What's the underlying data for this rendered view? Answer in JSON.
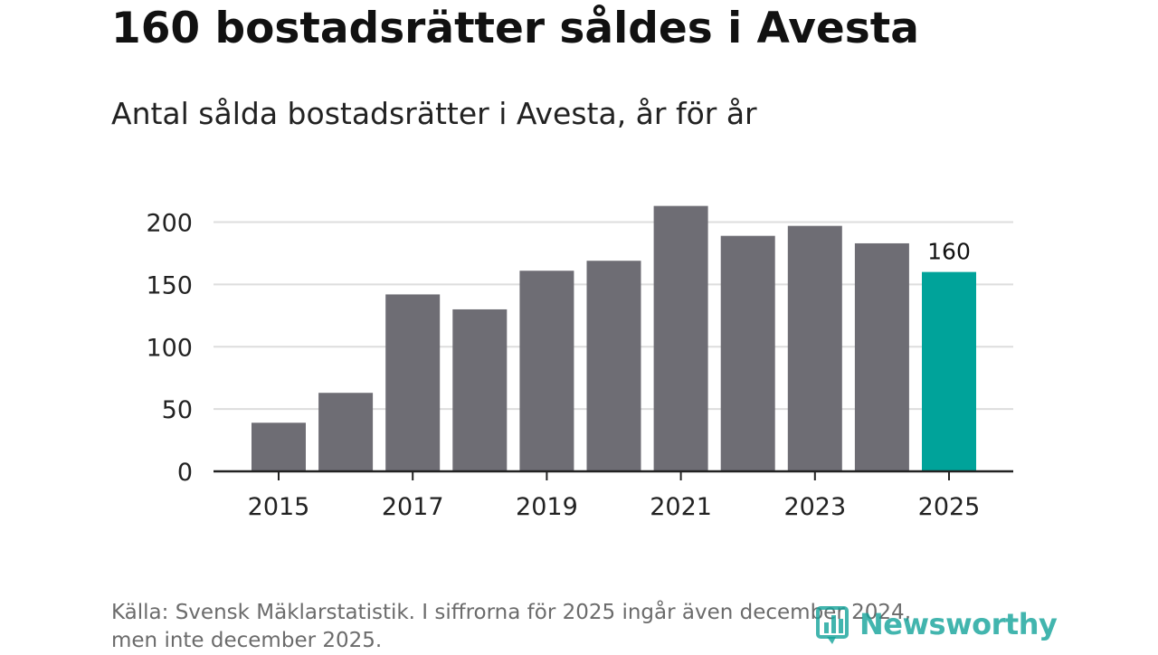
{
  "header": {
    "title": "160 bostadsrätter såldes i Avesta",
    "subtitle": "Antal sålda bostadsrätter i Avesta, år för år"
  },
  "footer": {
    "source_line1": "Källa: Svensk Mäklarstatistik. I siffrorna för 2025 ingår även december 2024,",
    "source_line2": "men inte december 2025.",
    "logo_text": "Newsworthy"
  },
  "colors": {
    "bar": "#6e6d74",
    "highlight": "#00a39a",
    "grid": "#dddddd",
    "axis": "#222222",
    "logo": "#14a39a"
  },
  "chart_data": {
    "type": "bar",
    "title": "160 bostadsrätter såldes i Avesta",
    "subtitle": "Antal sålda bostadsrätter i Avesta, år för år",
    "xlabel": "",
    "ylabel": "",
    "categories": [
      "2015",
      "2016",
      "2017",
      "2018",
      "2019",
      "2020",
      "2021",
      "2022",
      "2023",
      "2024",
      "2025"
    ],
    "values": [
      39,
      63,
      142,
      130,
      161,
      169,
      213,
      189,
      197,
      183,
      160
    ],
    "highlight_index": 10,
    "data_labels": [
      {
        "index": 10,
        "text": "160"
      }
    ],
    "ylim": [
      0,
      220
    ],
    "yticks": [
      0,
      50,
      100,
      150,
      200
    ],
    "xtick_labels": [
      "2015",
      "2017",
      "2019",
      "2021",
      "2023",
      "2025"
    ],
    "grid": true
  }
}
